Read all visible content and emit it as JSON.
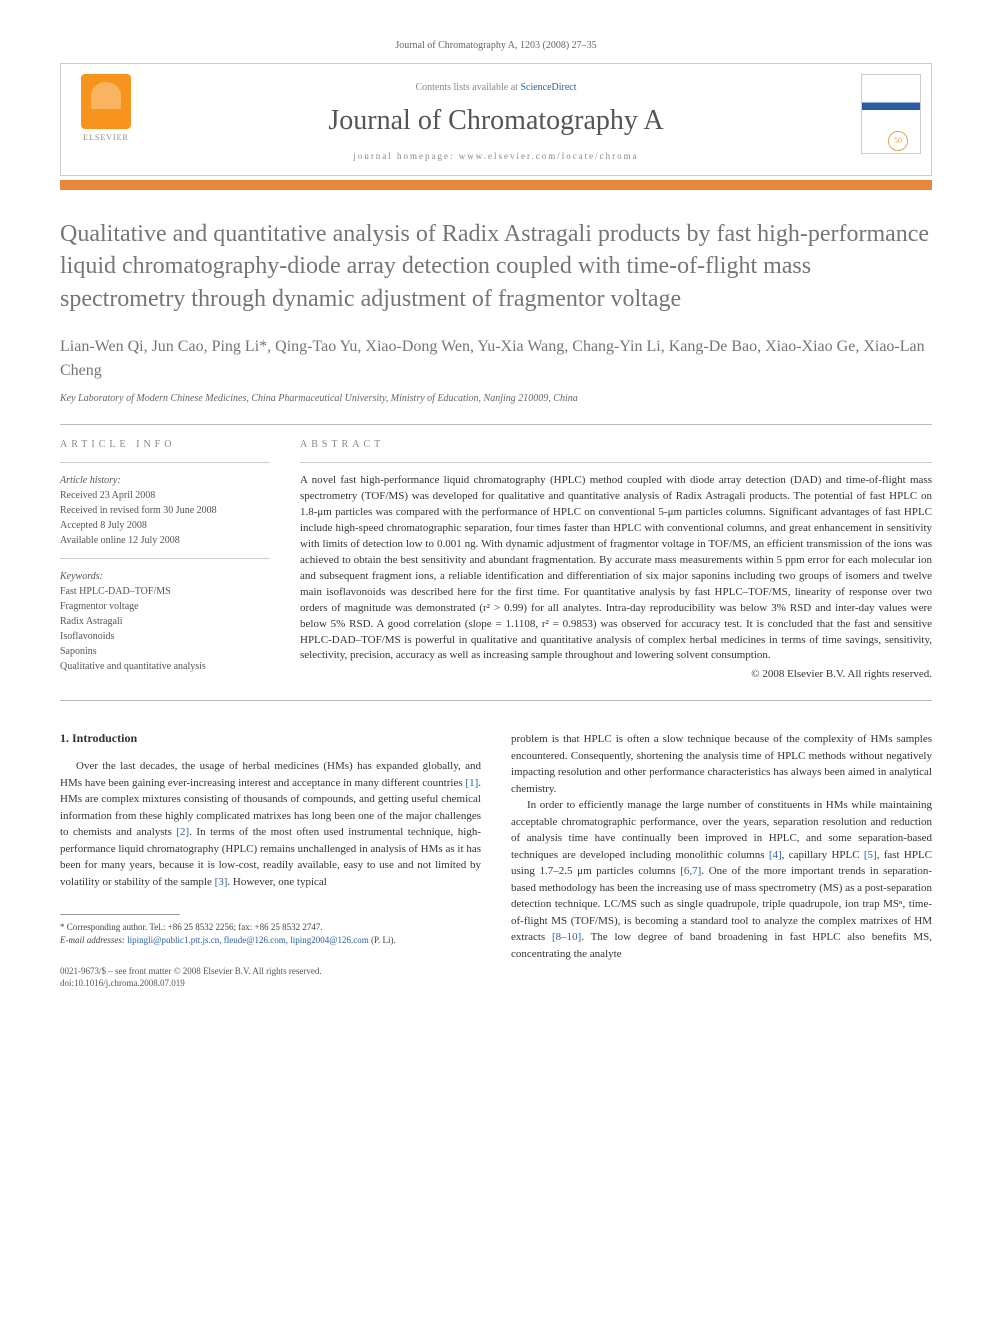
{
  "header": {
    "journal_ref": "Journal of Chromatography A, 1203 (2008) 27–35",
    "contents_prefix": "Contents lists available at ",
    "contents_link": "ScienceDirect",
    "journal_title": "Journal of Chromatography A",
    "homepage_prefix": "journal homepage: ",
    "homepage_url": "www.elsevier.com/locate/chroma",
    "publisher_logo_text": "ELSEVIER",
    "anniversary_badge": "50"
  },
  "article": {
    "title": "Qualitative and quantitative analysis of Radix Astragali products by fast high-performance liquid chromatography-diode array detection coupled with time-of-flight mass spectrometry through dynamic adjustment of fragmentor voltage",
    "authors": "Lian-Wen Qi, Jun Cao, Ping Li*, Qing-Tao Yu, Xiao-Dong Wen, Yu-Xia Wang, Chang-Yin Li, Kang-De Bao, Xiao-Xiao Ge, Xiao-Lan Cheng",
    "affiliation": "Key Laboratory of Modern Chinese Medicines, China Pharmaceutical University, Ministry of Education, Nanjing 210009, China"
  },
  "info": {
    "label": "ARTICLE INFO",
    "history_head": "Article history:",
    "received": "Received 23 April 2008",
    "revised": "Received in revised form 30 June 2008",
    "accepted": "Accepted 8 July 2008",
    "online": "Available online 12 July 2008",
    "keywords_head": "Keywords:",
    "kw1": "Fast HPLC-DAD–TOF/MS",
    "kw2": "Fragmentor voltage",
    "kw3": "Radix Astragali",
    "kw4": "Isoflavonoids",
    "kw5": "Saponins",
    "kw6": "Qualitative and quantitative analysis"
  },
  "abstract": {
    "label": "ABSTRACT",
    "text": "A novel fast high-performance liquid chromatography (HPLC) method coupled with diode array detection (DAD) and time-of-flight mass spectrometry (TOF/MS) was developed for qualitative and quantitative analysis of Radix Astragali products. The potential of fast HPLC on 1.8-μm particles was compared with the performance of HPLC on conventional 5-μm particles columns. Significant advantages of fast HPLC include high-speed chromatographic separation, four times faster than HPLC with conventional columns, and great enhancement in sensitivity with limits of detection low to 0.001 ng. With dynamic adjustment of fragmentor voltage in TOF/MS, an efficient transmission of the ions was achieved to obtain the best sensitivity and abundant fragmentation. By accurate mass measurements within 5 ppm error for each molecular ion and subsequent fragment ions, a reliable identification and differentiation of six major saponins including two groups of isomers and twelve main isoflavonoids was described here for the first time. For quantitative analysis by fast HPLC–TOF/MS, linearity of response over two orders of magnitude was demonstrated (r² > 0.99) for all analytes. Intra-day reproducibility was below 3% RSD and inter-day values were below 5% RSD. A good correlation (slope = 1.1108, r² = 0.9853) was observed for accuracy test. It is concluded that the fast and sensitive HPLC-DAD–TOF/MS is powerful in qualitative and quantitative analysis of complex herbal medicines in terms of time savings, sensitivity, selectivity, precision, accuracy as well as increasing sample throughout and lowering solvent consumption.",
    "copyright": "© 2008 Elsevier B.V. All rights reserved."
  },
  "body": {
    "section_num": "1.",
    "section_title": "Introduction",
    "left_p1a": "Over the last decades, the usage of herbal medicines (HMs) has expanded globally, and HMs have been gaining ever-increasing interest and acceptance in many different countries ",
    "ref1": "[1]",
    "left_p1b": ". HMs are complex mixtures consisting of thousands of compounds, and getting useful chemical information from these highly complicated matrixes has long been one of the major challenges to chemists and analysts ",
    "ref2": "[2]",
    "left_p1c": ". In terms of the most often used instrumental technique, high-performance liquid chromatography (HPLC) remains unchallenged in analysis of HMs as it has been for many years, because it is low-cost, readily available, easy to use and not limited by volatility or stability of the sample ",
    "ref3": "[3]",
    "left_p1d": ". However, one typical",
    "right_p1": "problem is that HPLC is often a slow technique because of the complexity of HMs samples encountered. Consequently, shortening the analysis time of HPLC methods without negatively impacting resolution and other performance characteristics has always been aimed in analytical chemistry.",
    "right_p2a": "In order to efficiently manage the large number of constituents in HMs while maintaining acceptable chromatographic performance, over the years, separation resolution and reduction of analysis time have continually been improved in HPLC, and some separation-based techniques are developed including monolithic columns ",
    "ref4": "[4]",
    "right_p2b": ", capillary HPLC ",
    "ref5": "[5]",
    "right_p2c": ", fast HPLC using 1.7–2.5 μm particles columns ",
    "ref67": "[6,7]",
    "right_p2d": ". One of the more important trends in separation-based methodology has been the increasing use of mass spectrometry (MS) as a post-separation detection technique. LC/MS such as single quadrupole, triple quadrupole, ion trap MSⁿ, time-of-flight MS (TOF/MS), is becoming a standard tool to analyze the complex matrixes of HM extracts ",
    "ref810": "[8–10]",
    "right_p2e": ". The low degree of band broadening in fast HPLC also benefits MS, concentrating the analyte"
  },
  "footnote": {
    "corr": "* Corresponding author. Tel.: +86 25 8532 2256; fax: +86 25 8532 2747.",
    "email_label": "E-mail addresses:",
    "emails": " lipingli@public1.ptt.js.cn, fleude@126.com, liping2004@126.com",
    "email_suffix": " (P. Li)."
  },
  "footer": {
    "line1": "0021-9673/$ – see front matter © 2008 Elsevier B.V. All rights reserved.",
    "line2": "doi:10.1016/j.chroma.2008.07.019"
  },
  "colors": {
    "accent_orange": "#e8863a",
    "link_blue": "#2b5da0",
    "text_gray": "#757575"
  }
}
